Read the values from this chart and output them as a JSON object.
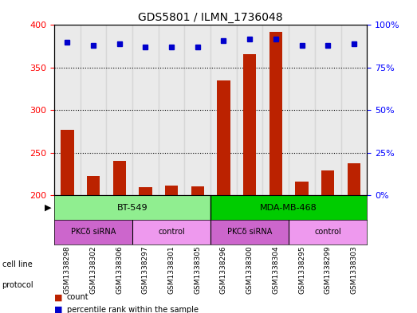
{
  "title": "GDS5801 / ILMN_1736048",
  "samples": [
    "GSM1338298",
    "GSM1338302",
    "GSM1338306",
    "GSM1338297",
    "GSM1338301",
    "GSM1338305",
    "GSM1338296",
    "GSM1338300",
    "GSM1338304",
    "GSM1338295",
    "GSM1338299",
    "GSM1338303"
  ],
  "counts": [
    277,
    223,
    241,
    210,
    212,
    211,
    335,
    366,
    392,
    216,
    229,
    238
  ],
  "percentiles": [
    90,
    88,
    89,
    87,
    87,
    87,
    91,
    92,
    92,
    88,
    88,
    89
  ],
  "ylim_left": [
    200,
    400
  ],
  "ylim_right": [
    0,
    100
  ],
  "yticks_left": [
    200,
    250,
    300,
    350,
    400
  ],
  "yticks_right": [
    0,
    25,
    50,
    75,
    100
  ],
  "yticklabels_right": [
    "0%",
    "25%",
    "50%",
    "75%",
    "100%"
  ],
  "cell_line_groups": [
    {
      "label": "BT-549",
      "start": 0,
      "end": 6,
      "color": "#90ee90"
    },
    {
      "label": "MDA-MB-468",
      "start": 6,
      "end": 12,
      "color": "#00cc00"
    }
  ],
  "protocol_groups": [
    {
      "label": "PKCδ siRNA",
      "start": 0,
      "end": 3,
      "color": "#ff80ff"
    },
    {
      "label": "control",
      "start": 3,
      "end": 6,
      "color": "#ff80ff"
    },
    {
      "label": "PKCδ siRNA",
      "start": 6,
      "end": 9,
      "color": "#ff80ff"
    },
    {
      "label": "control",
      "start": 9,
      "end": 12,
      "color": "#ff80ff"
    }
  ],
  "protocol_colors": [
    "#dd88dd",
    "#ffaaff",
    "#dd88dd",
    "#ffaaff"
  ],
  "bar_color": "#bb2200",
  "dot_color": "#0000cc",
  "background_color": "#ffffff",
  "grid_color": "#000000",
  "sample_bg_color": "#cccccc"
}
